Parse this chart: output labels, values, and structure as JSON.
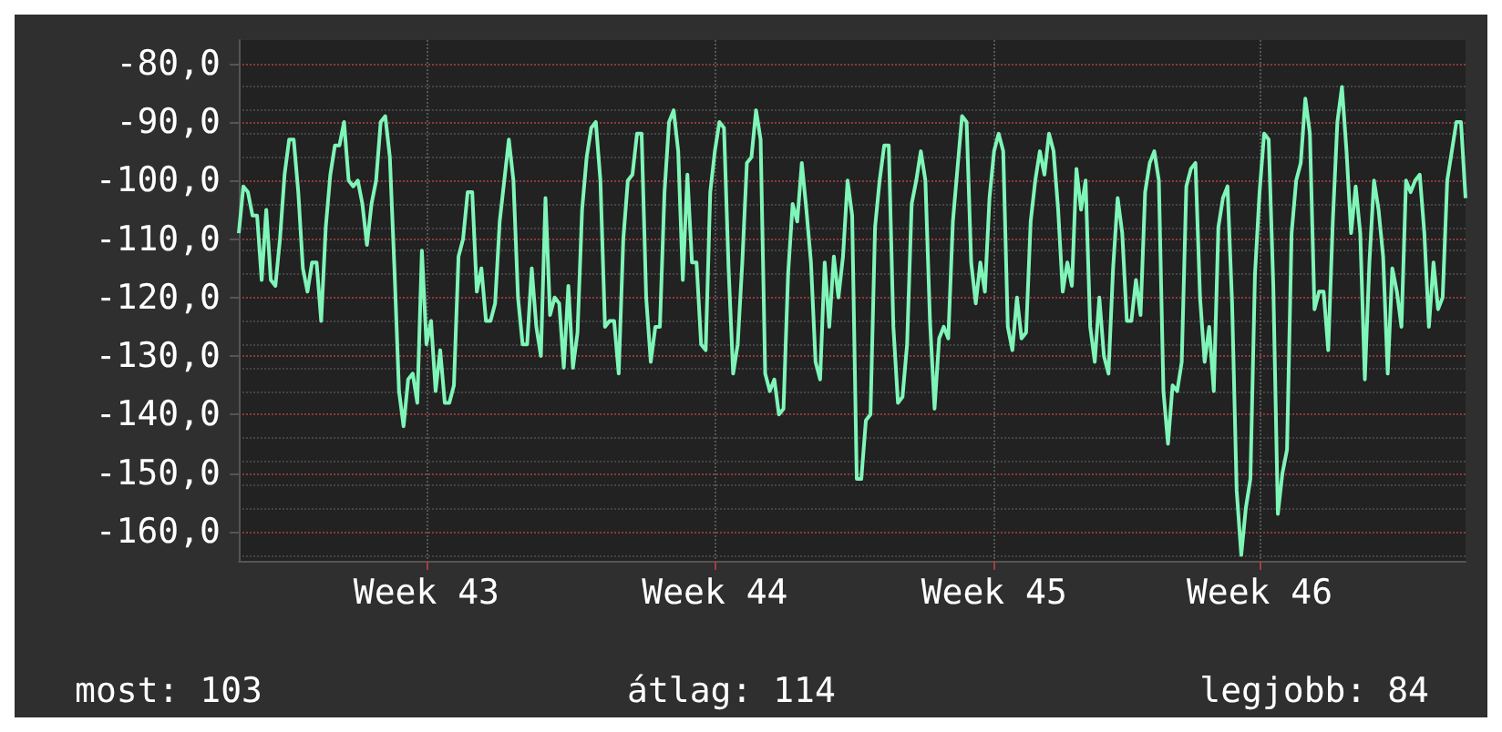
{
  "chart_data": {
    "type": "line",
    "categories": [
      null,
      null,
      null,
      null,
      null,
      null,
      null,
      null,
      null,
      null,
      null,
      null,
      null,
      null,
      null,
      null,
      null,
      null,
      null,
      null,
      null,
      null,
      null,
      null,
      null,
      null,
      null,
      null,
      null,
      null,
      null,
      null,
      null,
      null,
      null,
      null,
      null,
      null,
      null,
      null,
      null,
      "Week 43",
      null,
      null,
      null,
      null,
      null,
      null,
      null,
      null,
      null,
      null,
      null,
      null,
      null,
      null,
      null,
      null,
      null,
      null,
      null,
      null,
      null,
      null,
      null,
      null,
      null,
      null,
      null,
      null,
      null,
      null,
      null,
      null,
      null,
      null,
      null,
      null,
      null,
      null,
      null,
      null,
      null,
      null,
      null,
      null,
      null,
      null,
      null,
      null,
      null,
      null,
      null,
      null,
      null,
      null,
      null,
      null,
      null,
      null,
      null,
      null,
      null,
      null,
      "Week 44",
      null,
      null,
      null,
      null,
      null,
      null,
      null,
      null,
      null,
      null,
      null,
      null,
      null,
      null,
      null,
      null,
      null,
      null,
      null,
      null,
      null,
      null,
      null,
      null,
      null,
      null,
      null,
      null,
      null,
      null,
      null,
      null,
      null,
      null,
      null,
      null,
      null,
      null,
      null,
      null,
      null,
      null,
      null,
      null,
      null,
      null,
      null,
      null,
      null,
      null,
      null,
      null,
      null,
      null,
      null,
      null,
      null,
      null,
      null,
      null,
      "Week 45",
      null,
      null,
      null,
      null,
      null,
      null,
      null,
      null,
      null,
      null,
      null,
      null,
      null,
      null,
      null,
      null,
      null,
      null,
      null,
      null,
      null,
      null,
      null,
      null,
      null,
      null,
      null,
      null,
      null,
      null,
      null,
      null,
      null,
      null,
      null,
      null,
      null,
      null,
      null,
      null,
      null,
      null,
      null,
      null,
      null,
      null,
      null,
      null,
      null,
      null,
      null,
      null,
      null,
      null,
      null,
      null,
      null,
      "Week 46",
      null,
      null,
      null,
      null,
      null,
      null,
      null,
      null,
      null,
      null,
      null,
      null,
      null,
      null,
      null,
      null,
      null,
      null,
      null,
      null,
      null,
      null,
      null,
      null,
      null,
      null,
      null,
      null,
      null,
      null,
      null,
      null,
      null,
      null,
      null,
      null,
      null,
      null,
      null,
      null,
      null,
      null,
      null,
      null,
      null
    ],
    "series": [
      {
        "color": "#7ff5b8",
        "values": [
          -109,
          -101,
          -102,
          -106,
          -106,
          -117,
          -105,
          -117,
          -118,
          -110,
          -99,
          -93,
          -93,
          -102,
          -115,
          -119,
          -114,
          -114,
          -124,
          -108,
          -99,
          -94,
          -94,
          -90,
          -100,
          -101,
          -100,
          -104,
          -111,
          -104,
          -100,
          -90,
          -89,
          -96,
          -115,
          -136,
          -142,
          -134,
          -133,
          -138,
          -112,
          -128,
          -124,
          -136,
          -129,
          -138,
          -138,
          -135,
          -113,
          -110,
          -102,
          -102,
          -119,
          -115,
          -124,
          -124,
          -121,
          -107,
          -100,
          -93,
          -100,
          -120,
          -128,
          -128,
          -115,
          -125,
          -130,
          -103,
          -123,
          -120,
          -121,
          -132,
          -118,
          -132,
          -126,
          -105,
          -96,
          -91,
          -90,
          -100,
          -125,
          -124,
          -124,
          -133,
          -110,
          -100,
          -99,
          -92,
          -92,
          -120,
          -131,
          -125,
          -125,
          -102,
          -90,
          -88,
          -95,
          -117,
          -99,
          -114,
          -114,
          -128,
          -129,
          -102,
          -95,
          -90,
          -91,
          -115,
          -133,
          -128,
          -114,
          -97,
          -96,
          -88,
          -93,
          -133,
          -136,
          -134,
          -140,
          -139,
          -116,
          -104,
          -107,
          -97,
          -105,
          -114,
          -131,
          -134,
          -114,
          -125,
          -113,
          -120,
          -113,
          -100,
          -106,
          -151,
          -151,
          -141,
          -140,
          -108,
          -100,
          -94,
          -94,
          -125,
          -138,
          -137,
          -128,
          -104,
          -100,
          -95,
          -100,
          -124,
          -139,
          -127,
          -125,
          -127,
          -107,
          -98,
          -89,
          -90,
          -114,
          -121,
          -114,
          -119,
          -103,
          -95,
          -92,
          -95,
          -125,
          -129,
          -120,
          -127,
          -126,
          -107,
          -100,
          -95,
          -99,
          -92,
          -95,
          -105,
          -119,
          -114,
          -118,
          -98,
          -105,
          -100,
          -125,
          -131,
          -120,
          -130,
          -133,
          -115,
          -103,
          -109,
          -124,
          -124,
          -117,
          -123,
          -102,
          -97,
          -95,
          -100,
          -136,
          -145,
          -135,
          -136,
          -131,
          -101,
          -98,
          -97,
          -120,
          -131,
          -125,
          -136,
          -108,
          -103,
          -101,
          -121,
          -153,
          -164,
          -156,
          -151,
          -116,
          -102,
          -92,
          -93,
          -118,
          -157,
          -150,
          -146,
          -109,
          -100,
          -97,
          -86,
          -92,
          -122,
          -119,
          -119,
          -129,
          -107,
          -90,
          -84,
          -95,
          -109,
          -101,
          -109,
          -134,
          -114,
          -100,
          -105,
          -113,
          -133,
          -115,
          -119,
          -125,
          -100,
          -102,
          -100,
          -99,
          -109,
          -125,
          -114,
          -122,
          -120,
          -100,
          -95,
          -90,
          -90,
          -103
        ]
      }
    ],
    "ylim": [
      -165,
      -76
    ],
    "yticks": [
      {
        "value": -160,
        "label": "-160,0"
      },
      {
        "value": -150,
        "label": "-150,0"
      },
      {
        "value": -140,
        "label": "-140,0"
      },
      {
        "value": -130,
        "label": "-130,0"
      },
      {
        "value": -120,
        "label": "-120,0"
      },
      {
        "value": -110,
        "label": "-110,0"
      },
      {
        "value": -100,
        "label": "-100,0"
      },
      {
        "value": -90,
        "label": "-90,0"
      },
      {
        "value": -80,
        "label": "-80,0"
      }
    ],
    "grid": true,
    "annotations": [
      "most: 103",
      "átlag: 114",
      "legjobb: 84"
    ]
  }
}
